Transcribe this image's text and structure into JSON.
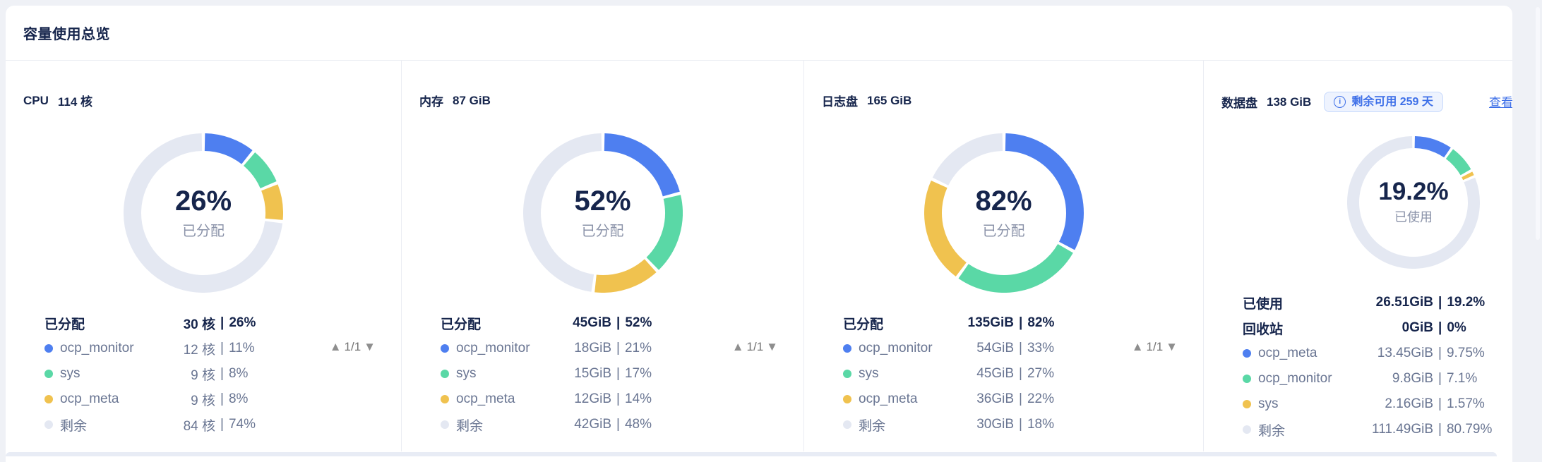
{
  "page": {
    "title": "容量使用总览"
  },
  "ui": {
    "pipe": "|",
    "pager_up": "▲",
    "pager_down": "▼",
    "info_glyph": "i"
  },
  "colors": {
    "blue": "#4E7FF0",
    "green": "#5AD8A6",
    "yellow": "#F0C24F",
    "grey": "#E4E8F2",
    "accent_link": "#3D6FE8",
    "text_dark": "#16254C",
    "text_grey": "#697592"
  },
  "cards": [
    {
      "name": "CPU",
      "total": "114 核",
      "donut": {
        "percent": "26%",
        "sub_label": "已分配",
        "segments": [
          {
            "color": "blue",
            "value": 11
          },
          {
            "color": "green",
            "value": 8
          },
          {
            "color": "yellow",
            "value": 8
          },
          {
            "color": "grey",
            "value": 74
          }
        ]
      },
      "stats": {
        "headers": [
          {
            "label": "已分配",
            "amount": "30 核",
            "pct": "26%"
          }
        ],
        "items": [
          {
            "dot": "blue",
            "label": "ocp_monitor",
            "amount": "12 核",
            "pct": "11%"
          },
          {
            "dot": "green",
            "label": "sys",
            "amount": "9 核",
            "pct": "8%"
          },
          {
            "dot": "yellow",
            "label": "ocp_meta",
            "amount": "9 核",
            "pct": "8%"
          },
          {
            "dot": "grey",
            "label": "剩余",
            "amount": "84 核",
            "pct": "74%"
          }
        ]
      },
      "pager": "1/1"
    },
    {
      "name": "内存",
      "total": "87 GiB",
      "donut": {
        "percent": "52%",
        "sub_label": "已分配",
        "segments": [
          {
            "color": "blue",
            "value": 21
          },
          {
            "color": "green",
            "value": 17
          },
          {
            "color": "yellow",
            "value": 14
          },
          {
            "color": "grey",
            "value": 48
          }
        ]
      },
      "stats": {
        "headers": [
          {
            "label": "已分配",
            "amount": "45GiB",
            "pct": "52%"
          }
        ],
        "items": [
          {
            "dot": "blue",
            "label": "ocp_monitor",
            "amount": "18GiB",
            "pct": "21%"
          },
          {
            "dot": "green",
            "label": "sys",
            "amount": "15GiB",
            "pct": "17%"
          },
          {
            "dot": "yellow",
            "label": "ocp_meta",
            "amount": "12GiB",
            "pct": "14%"
          },
          {
            "dot": "grey",
            "label": "剩余",
            "amount": "42GiB",
            "pct": "48%"
          }
        ]
      },
      "pager": "1/1"
    },
    {
      "name": "日志盘",
      "total": "165 GiB",
      "donut": {
        "percent": "82%",
        "sub_label": "已分配",
        "segments": [
          {
            "color": "blue",
            "value": 33
          },
          {
            "color": "green",
            "value": 27
          },
          {
            "color": "yellow",
            "value": 22
          },
          {
            "color": "grey",
            "value": 18
          }
        ]
      },
      "stats": {
        "headers": [
          {
            "label": "已分配",
            "amount": "135GiB",
            "pct": "82%"
          }
        ],
        "items": [
          {
            "dot": "blue",
            "label": "ocp_monitor",
            "amount": "54GiB",
            "pct": "33%"
          },
          {
            "dot": "green",
            "label": "sys",
            "amount": "45GiB",
            "pct": "27%"
          },
          {
            "dot": "yellow",
            "label": "ocp_meta",
            "amount": "36GiB",
            "pct": "22%"
          },
          {
            "dot": "grey",
            "label": "剩余",
            "amount": "30GiB",
            "pct": "18%"
          }
        ]
      },
      "pager": "1/1"
    },
    {
      "name": "数据盘",
      "total": "138 GiB",
      "badge": "剩余可用 259 天",
      "link": "查看",
      "donut": {
        "percent": "19.2%",
        "sub_label": "已使用",
        "segments": [
          {
            "color": "blue",
            "value": 9.75
          },
          {
            "color": "green",
            "value": 7.1
          },
          {
            "color": "yellow",
            "value": 1.57
          },
          {
            "color": "grey",
            "value": 80.79
          }
        ]
      },
      "stats": {
        "headers": [
          {
            "label": "已使用",
            "amount": "26.51GiB",
            "pct": "19.2%"
          },
          {
            "label": "回收站",
            "amount": "0GiB",
            "pct": "0%"
          }
        ],
        "items": [
          {
            "dot": "blue",
            "label": "ocp_meta",
            "amount": "13.45GiB",
            "pct": "9.75%"
          },
          {
            "dot": "green",
            "label": "ocp_monitor",
            "amount": "9.8GiB",
            "pct": "7.1%"
          },
          {
            "dot": "yellow",
            "label": "sys",
            "amount": "2.16GiB",
            "pct": "1.57%"
          },
          {
            "dot": "grey",
            "label": "剩余",
            "amount": "111.49GiB",
            "pct": "80.79%"
          }
        ]
      }
    }
  ],
  "chart_data": [
    {
      "type": "pie",
      "title": "CPU 114 核",
      "center_value": "26%",
      "center_label": "已分配",
      "categories": [
        "ocp_monitor",
        "sys",
        "ocp_meta",
        "剩余"
      ],
      "values": [
        11,
        8,
        8,
        74
      ],
      "amounts": [
        "12 核",
        "9 核",
        "9 核",
        "84 核"
      ],
      "allocated_total": "30 核 | 26%",
      "unit": "核",
      "legend_position": "bottom"
    },
    {
      "type": "pie",
      "title": "内存 87 GiB",
      "center_value": "52%",
      "center_label": "已分配",
      "categories": [
        "ocp_monitor",
        "sys",
        "ocp_meta",
        "剩余"
      ],
      "values": [
        21,
        17,
        14,
        48
      ],
      "amounts": [
        "18GiB",
        "15GiB",
        "12GiB",
        "42GiB"
      ],
      "allocated_total": "45GiB | 52%",
      "unit": "GiB",
      "legend_position": "bottom"
    },
    {
      "type": "pie",
      "title": "日志盘 165 GiB",
      "center_value": "82%",
      "center_label": "已分配",
      "categories": [
        "ocp_monitor",
        "sys",
        "ocp_meta",
        "剩余"
      ],
      "values": [
        33,
        27,
        22,
        18
      ],
      "amounts": [
        "54GiB",
        "45GiB",
        "36GiB",
        "30GiB"
      ],
      "allocated_total": "135GiB | 82%",
      "unit": "GiB",
      "legend_position": "bottom"
    },
    {
      "type": "pie",
      "title": "数据盘 138 GiB",
      "center_value": "19.2%",
      "center_label": "已使用",
      "categories": [
        "ocp_meta",
        "ocp_monitor",
        "sys",
        "剩余"
      ],
      "values": [
        9.75,
        7.1,
        1.57,
        80.79
      ],
      "amounts": [
        "13.45GiB",
        "9.8GiB",
        "2.16GiB",
        "111.49GiB"
      ],
      "used_total": "26.51GiB | 19.2%",
      "recycle_bin": "0GiB | 0%",
      "unit": "GiB",
      "legend_position": "bottom"
    }
  ]
}
